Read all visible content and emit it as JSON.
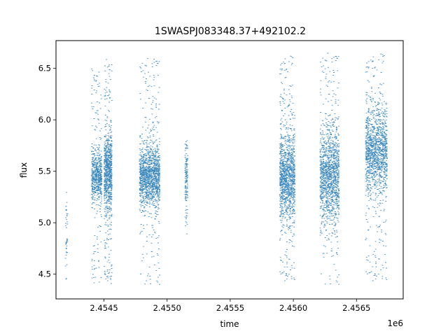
{
  "chart_data": {
    "type": "scatter",
    "title": "1SWASPJ083348.37+492102.2",
    "xlabel": "time",
    "ylabel": "flux",
    "x_offset_label": "1e6",
    "xlim": [
      2.45412,
      2.45687
    ],
    "ylim": [
      4.26,
      6.77
    ],
    "x_ticks": [
      2.4545,
      2.455,
      2.4555,
      2.456,
      2.4565
    ],
    "x_tick_labels": [
      "2.4545",
      "2.4550",
      "2.4555",
      "2.4560",
      "2.4565"
    ],
    "y_ticks": [
      4.5,
      5.0,
      5.5,
      6.0,
      6.5
    ],
    "y_tick_labels": [
      "4.5",
      "5.0",
      "5.5",
      "6.0",
      "6.5"
    ],
    "grid": false,
    "legend": "none",
    "point_color": "#1f77b4",
    "series": [
      {
        "x": [
          2.4542,
          2.45444,
          2.45445,
          2.45452,
          2.45453,
          2.45454,
          2.45455,
          2.45482,
          2.45486,
          2.45488,
          2.4549,
          2.45492,
          2.45515,
          2.45594,
          2.45596,
          2.45598,
          2.45624,
          2.45627,
          2.45632,
          2.45634,
          2.4566,
          2.45663,
          2.45666,
          2.4567,
          2.45672
        ],
        "y": [
          4.8,
          5.45,
          5.5,
          5.3,
          5.55,
          5.6,
          5.45,
          5.4,
          5.5,
          5.45,
          5.5,
          5.4,
          5.45,
          5.4,
          5.5,
          5.45,
          5.45,
          5.5,
          5.4,
          5.55,
          5.7,
          5.75,
          5.65,
          5.7,
          5.75
        ]
      }
    ],
    "clusters": [
      {
        "x_min": 2.45419,
        "x_max": 2.45421,
        "y_center": 4.85,
        "y_core_sd": 0.25,
        "y_min": 4.4,
        "y_max": 5.3,
        "n": 40
      },
      {
        "x_min": 2.4544,
        "x_max": 2.45448,
        "y_center": 5.45,
        "y_core_sd": 0.12,
        "y_min": 4.4,
        "y_max": 6.5,
        "n": 650
      },
      {
        "x_min": 2.4545,
        "x_max": 2.45456,
        "y_center": 5.5,
        "y_core_sd": 0.18,
        "y_min": 4.4,
        "y_max": 6.62,
        "n": 900
      },
      {
        "x_min": 2.45478,
        "x_max": 2.45494,
        "y_center": 5.45,
        "y_core_sd": 0.14,
        "y_min": 4.4,
        "y_max": 6.6,
        "n": 1500
      },
      {
        "x_min": 2.45514,
        "x_max": 2.45516,
        "y_center": 5.45,
        "y_core_sd": 0.15,
        "y_min": 4.85,
        "y_max": 5.82,
        "n": 140
      },
      {
        "x_min": 2.45589,
        "x_max": 2.45601,
        "y_center": 5.45,
        "y_core_sd": 0.2,
        "y_min": 4.4,
        "y_max": 6.63,
        "n": 1300
      },
      {
        "x_min": 2.45621,
        "x_max": 2.45636,
        "y_center": 5.45,
        "y_core_sd": 0.22,
        "y_min": 4.4,
        "y_max": 6.65,
        "n": 1400
      },
      {
        "x_min": 2.45657,
        "x_max": 2.45674,
        "y_center": 5.7,
        "y_core_sd": 0.2,
        "y_min": 4.4,
        "y_max": 6.65,
        "n": 1400
      }
    ]
  }
}
